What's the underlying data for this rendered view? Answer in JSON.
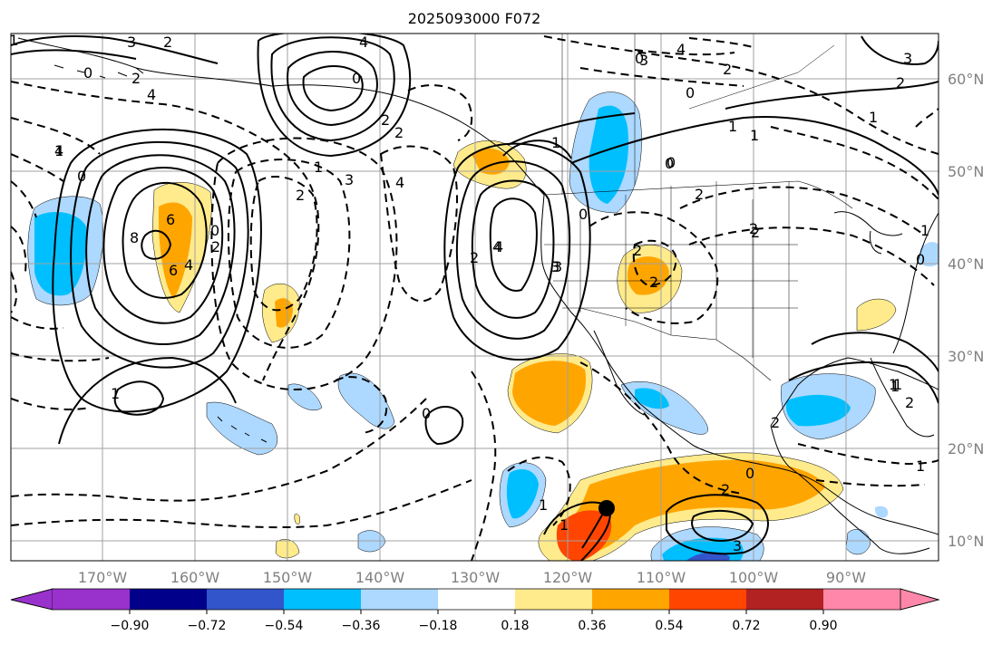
{
  "title": "2025093000 F072",
  "lat_labels": [
    "60°N",
    "50°N",
    "40°N",
    "30°N",
    "20°N",
    "10°N"
  ],
  "lon_labels": [
    "170°W",
    "160°W",
    "150°W",
    "140°W",
    "130°W",
    "120°W",
    "110°W",
    "100°W",
    "90°W"
  ],
  "colorbar": {
    "colors": [
      "#9932cc",
      "#00008b",
      "#3355cc",
      "#00bfff",
      "#add8ff",
      "#ffffff",
      "#ffeb8c",
      "#ffa500",
      "#ff4500",
      "#b22222",
      "#ff88aa"
    ],
    "tick_labels": [
      "−0.90",
      "−0.72",
      "−0.54",
      "−0.36",
      "−0.18",
      "0.18",
      "0.36",
      "0.54",
      "0.72",
      "0.90"
    ]
  },
  "map_style": {
    "ocean": "#ffffff",
    "coastline": "#000000",
    "gridline": "#a0a0a0",
    "contour_positive": "solid",
    "contour_negative": "dashed"
  },
  "storm_marker": {
    "lat": 13.5,
    "lon": -115.5
  },
  "contour_labels": [
    "1",
    "3",
    "2",
    "0",
    "4",
    "2",
    "6",
    "4",
    "2",
    "0",
    "2",
    "1",
    "4",
    "4",
    "3",
    "2",
    "1",
    "0",
    "2",
    "2",
    "3",
    "1",
    "8",
    "6",
    "4",
    "2",
    "1",
    "0",
    "2",
    "3",
    "2",
    "1",
    "2",
    "3",
    "4",
    "2",
    "4",
    "3",
    "2",
    "1",
    "0",
    "1",
    "2",
    "3",
    "2",
    "2",
    "0",
    "1",
    "0",
    "1",
    "0",
    "0",
    "1",
    "0",
    "1",
    "0",
    "2",
    "1",
    "0",
    "1",
    "4",
    "1"
  ]
}
